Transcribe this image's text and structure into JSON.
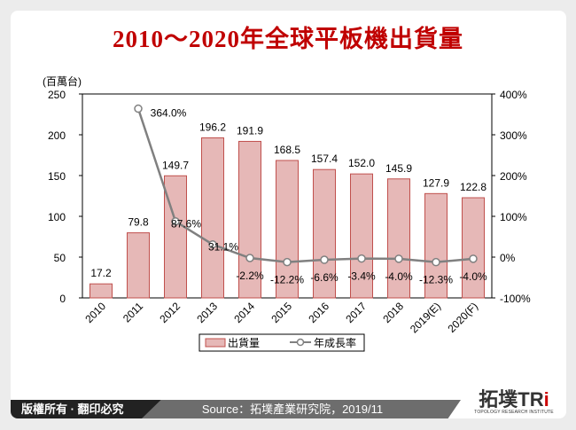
{
  "title": "2010～2020年全球平板機出貨量",
  "footer": {
    "copyright": "版權所有 · 翻印必究",
    "source": "Source：拓墣產業研究院，2019/11",
    "logo_text": "拓墣TRi",
    "logo_subtext": "TOPOLOGY RESEARCH INSTITUTE"
  },
  "colors": {
    "title": "#c00000",
    "bar_fill": "#e6b8b7",
    "bar_stroke": "#c0504d",
    "line": "#808080"
  },
  "chart_data": {
    "type": "bar+line",
    "categories": [
      "2010",
      "2011",
      "2012",
      "2013",
      "2014",
      "2015",
      "2016",
      "2017",
      "2018",
      "2019(E)",
      "2020(F)"
    ],
    "ylabel": "(百萬台)",
    "ylim": [
      0,
      250
    ],
    "yticks": [
      "0",
      "50",
      "100",
      "150",
      "200",
      "250"
    ],
    "y2lim": [
      -100,
      400
    ],
    "y2ticks": [
      "-100%",
      "0%",
      "100%",
      "200%",
      "300%",
      "400%"
    ],
    "legend_position": "bottom",
    "series": [
      {
        "name": "出貨量",
        "type": "bar",
        "values": [
          17.2,
          79.8,
          149.7,
          196.2,
          191.9,
          168.5,
          157.4,
          152.0,
          145.9,
          127.9,
          122.8
        ],
        "labels": [
          "17.2",
          "79.8",
          "149.7",
          "196.2",
          "191.9",
          "168.5",
          "157.4",
          "152.0",
          "145.9",
          "127.9",
          "122.8"
        ]
      },
      {
        "name": "年成長率",
        "type": "line",
        "axis": "right",
        "values": [
          null,
          364.0,
          87.6,
          31.1,
          -2.2,
          -12.2,
          -6.6,
          -3.4,
          -4.0,
          -12.3,
          -4.0
        ],
        "labels": [
          null,
          "364.0%",
          "87.6%",
          "31.1%",
          "-2.2%",
          "-12.2%",
          "-6.6%",
          "-3.4%",
          "-4.0%",
          "-12.3%",
          "-4.0%"
        ]
      }
    ]
  }
}
